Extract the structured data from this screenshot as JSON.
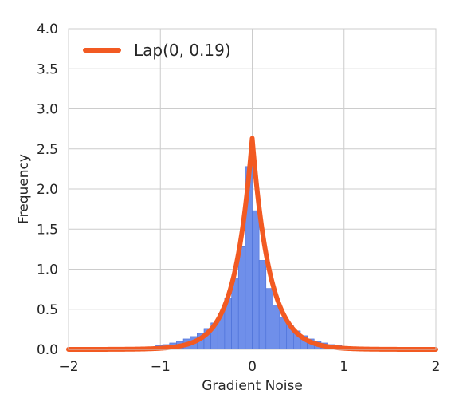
{
  "chart_data": {
    "type": "bar",
    "title": "",
    "xlabel": "Gradient Noise",
    "ylabel": "Frequency",
    "xlim": [
      -2,
      2
    ],
    "ylim": [
      0,
      4.0
    ],
    "x_ticks": [
      -2,
      -1,
      0,
      1,
      2
    ],
    "x_tick_labels": [
      "−2",
      "−1",
      "0",
      "1",
      "2"
    ],
    "y_ticks": [
      0,
      0.5,
      1.0,
      1.5,
      2.0,
      2.5,
      3.0,
      3.5,
      4.0
    ],
    "y_tick_labels": [
      "0.0",
      "0.5",
      "1.0",
      "1.5",
      "2.0",
      "2.5",
      "3.0",
      "3.5",
      "4.0"
    ],
    "grid": true,
    "legend_position": "top-left",
    "bar_color": "#6f8fea",
    "bar_edge_color": "#4a6fd8",
    "curve_color": "#f25a22",
    "histogram": {
      "bin_edges": [
        -1.2,
        -1.125,
        -1.05,
        -0.975,
        -0.9,
        -0.825,
        -0.75,
        -0.675,
        -0.6,
        -0.525,
        -0.45,
        -0.375,
        -0.3,
        -0.225,
        -0.15,
        -0.075,
        0.0,
        0.075,
        0.15,
        0.225,
        0.3,
        0.375,
        0.45,
        0.525,
        0.6,
        0.675,
        0.75,
        0.825,
        0.9,
        0.975,
        1.05,
        1.125
      ],
      "values": [
        0.02,
        0.03,
        0.05,
        0.06,
        0.08,
        0.1,
        0.13,
        0.16,
        0.2,
        0.26,
        0.33,
        0.45,
        0.64,
        0.89,
        1.28,
        2.28,
        1.73,
        1.11,
        0.76,
        0.55,
        0.4,
        0.3,
        0.23,
        0.17,
        0.13,
        0.1,
        0.08,
        0.06,
        0.05,
        0.03,
        0.02
      ]
    },
    "series": [
      {
        "name": "Lap(0, 0.19)",
        "type": "line",
        "distribution": "laplace",
        "loc": 0,
        "scale": 0.19
      }
    ]
  }
}
